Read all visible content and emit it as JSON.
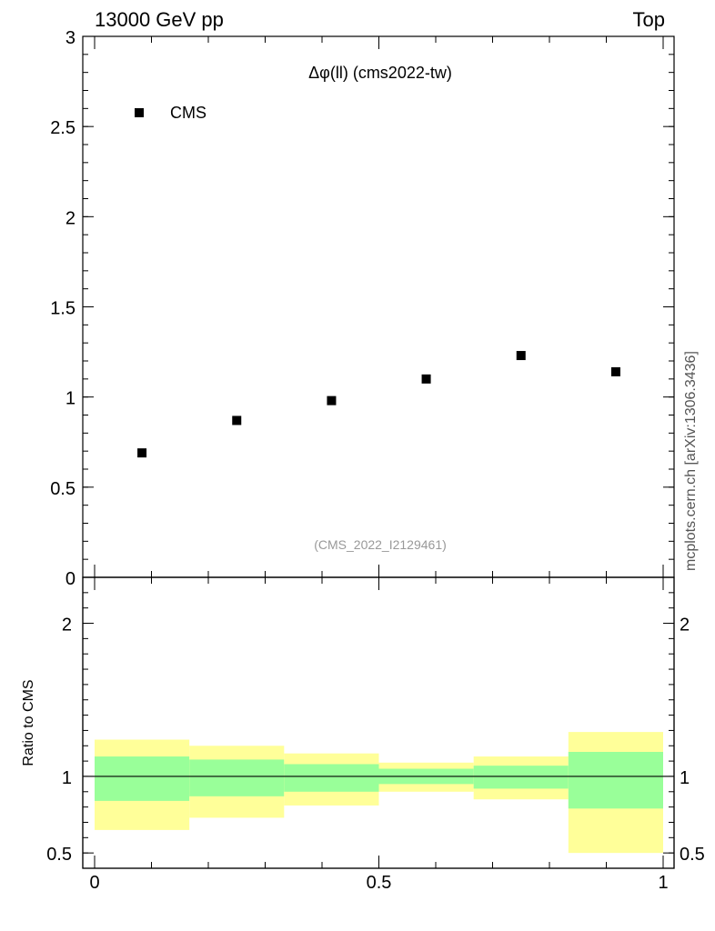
{
  "header": {
    "left": "13000 GeV pp",
    "right": "Top"
  },
  "side_label": "mcplots.cern.ch [arXiv:1306.3436]",
  "chart_data": [
    {
      "type": "scatter",
      "title": "Δφ(ll) (cms2022-tw)",
      "analysis_id": "(CMS_2022_I2129461)",
      "xlim": [
        0,
        1
      ],
      "ylim": [
        0,
        3
      ],
      "yticks": [
        "0",
        "0.5",
        "1",
        "1.5",
        "2",
        "2.5",
        "3"
      ],
      "legend": {
        "placement": "top-left",
        "entries": [
          "CMS"
        ]
      },
      "series": [
        {
          "name": "CMS",
          "x": [
            0.0833,
            0.25,
            0.4167,
            0.5833,
            0.75,
            0.9167
          ],
          "y": [
            0.69,
            0.87,
            0.98,
            1.1,
            1.23,
            1.14
          ]
        }
      ]
    },
    {
      "type": "area",
      "ylabel": "Ratio to CMS",
      "xlim": [
        0,
        1
      ],
      "ylim": [
        0.4,
        2.3
      ],
      "xticks": [
        "0",
        "0.5",
        "1"
      ],
      "yticks": [
        "0.5",
        "1",
        "2"
      ],
      "reference_line": 1,
      "bins": [
        {
          "x0": 0.0,
          "x1": 0.1667,
          "inner": [
            0.84,
            1.13
          ],
          "outer": [
            0.65,
            1.24
          ]
        },
        {
          "x0": 0.1667,
          "x1": 0.3333,
          "inner": [
            0.87,
            1.11
          ],
          "outer": [
            0.73,
            1.2
          ]
        },
        {
          "x0": 0.3333,
          "x1": 0.5,
          "inner": [
            0.9,
            1.08
          ],
          "outer": [
            0.81,
            1.15
          ]
        },
        {
          "x0": 0.5,
          "x1": 0.6667,
          "inner": [
            0.95,
            1.05
          ],
          "outer": [
            0.9,
            1.09
          ]
        },
        {
          "x0": 0.6667,
          "x1": 0.8333,
          "inner": [
            0.92,
            1.07
          ],
          "outer": [
            0.85,
            1.13
          ]
        },
        {
          "x0": 0.8333,
          "x1": 1.0,
          "inner": [
            0.79,
            1.16
          ],
          "outer": [
            0.5,
            1.29
          ]
        }
      ],
      "colors": {
        "inner": "#99ff99",
        "outer": "#ffff99"
      }
    }
  ]
}
